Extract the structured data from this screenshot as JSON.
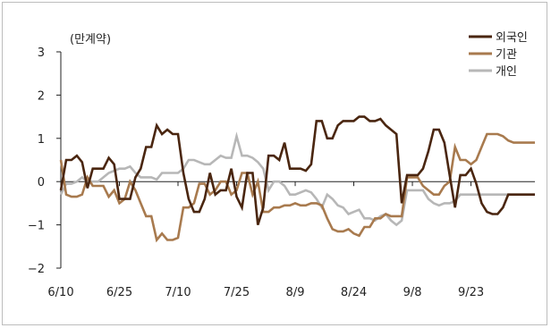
{
  "chart_data": {
    "type": "line",
    "unit_label": "(만계약)",
    "x_tick_labels": [
      "6/10",
      "6/25",
      "7/10",
      "7/25",
      "8/9",
      "8/24",
      "9/8",
      "9/23"
    ],
    "x_tick_index": [
      0,
      11,
      22,
      33,
      44,
      55,
      66,
      77
    ],
    "num_points": 90,
    "ylim": [
      -2,
      3
    ],
    "yticks": [
      3,
      2,
      1,
      0,
      -1,
      -2
    ],
    "ytick_labels": [
      "3",
      "2",
      "1",
      "0",
      "−1",
      "−2"
    ],
    "legend_position": "top-right",
    "series": [
      {
        "name": "외국인",
        "color": "#4a2610",
        "values": [
          -0.2,
          0.5,
          0.5,
          0.6,
          0.45,
          -0.15,
          0.3,
          0.3,
          0.3,
          0.55,
          0.4,
          -0.4,
          -0.4,
          -0.4,
          0.1,
          0.3,
          0.8,
          0.8,
          1.3,
          1.1,
          1.2,
          1.1,
          1.1,
          0.2,
          -0.4,
          -0.7,
          -0.7,
          -0.4,
          0.2,
          -0.3,
          -0.2,
          -0.2,
          0.3,
          -0.35,
          -0.6,
          0.2,
          0.2,
          -1.0,
          -0.6,
          0.6,
          0.6,
          0.5,
          0.9,
          0.3,
          0.3,
          0.3,
          0.25,
          0.4,
          1.4,
          1.4,
          1.0,
          1.0,
          1.3,
          1.4,
          1.4,
          1.4,
          1.5,
          1.5,
          1.4,
          1.4,
          1.45,
          1.3,
          1.2,
          1.1,
          -0.5,
          0.15,
          0.15,
          0.15,
          0.3,
          0.7,
          1.2,
          1.2,
          0.9,
          0.15,
          -0.6,
          0.15,
          0.15,
          0.3,
          -0.05,
          -0.5,
          -0.7,
          -0.75,
          -0.75,
          -0.6,
          -0.3,
          -0.3,
          -0.3,
          -0.3,
          -0.3,
          -0.3
        ]
      },
      {
        "name": "기관",
        "color": "#a87a4e",
        "values": [
          0.5,
          -0.3,
          -0.35,
          -0.35,
          -0.3,
          0.1,
          -0.1,
          -0.1,
          -0.1,
          -0.35,
          -0.2,
          -0.5,
          -0.4,
          0.0,
          -0.2,
          -0.5,
          -0.8,
          -0.8,
          -1.35,
          -1.2,
          -1.35,
          -1.35,
          -1.3,
          -0.6,
          -0.6,
          -0.5,
          -0.05,
          -0.05,
          -0.3,
          -0.2,
          0.0,
          0.0,
          -0.3,
          -0.2,
          0.2,
          0.2,
          -0.3,
          0.0,
          -0.7,
          -0.7,
          -0.6,
          -0.6,
          -0.55,
          -0.55,
          -0.5,
          -0.55,
          -0.55,
          -0.5,
          -0.5,
          -0.55,
          -0.85,
          -1.1,
          -1.15,
          -1.15,
          -1.1,
          -1.2,
          -1.25,
          -1.05,
          -1.05,
          -0.85,
          -0.85,
          -0.75,
          -0.8,
          -0.8,
          -0.8,
          0.1,
          0.1,
          0.1,
          -0.1,
          -0.2,
          -0.3,
          -0.3,
          -0.1,
          0.0,
          0.8,
          0.5,
          0.5,
          0.4,
          0.5,
          0.8,
          1.1,
          1.1,
          1.1,
          1.05,
          0.95,
          0.9,
          0.9,
          0.9,
          0.9,
          0.9
        ]
      },
      {
        "name": "개인",
        "color": "#b7b7b7",
        "values": [
          -0.3,
          -0.05,
          -0.05,
          0.0,
          0.1,
          0.0,
          0.0,
          0.0,
          0.1,
          0.2,
          0.25,
          0.3,
          0.3,
          0.35,
          0.2,
          0.1,
          0.1,
          0.1,
          0.05,
          0.2,
          0.2,
          0.2,
          0.2,
          0.3,
          0.5,
          0.5,
          0.45,
          0.4,
          0.4,
          0.5,
          0.6,
          0.55,
          0.55,
          1.05,
          0.6,
          0.6,
          0.55,
          0.45,
          0.3,
          -0.2,
          0.0,
          0.0,
          -0.1,
          -0.3,
          -0.3,
          -0.25,
          -0.2,
          -0.25,
          -0.4,
          -0.6,
          -0.3,
          -0.4,
          -0.55,
          -0.6,
          -0.75,
          -0.7,
          -0.65,
          -0.85,
          -0.85,
          -0.9,
          -0.8,
          -0.75,
          -0.9,
          -1.0,
          -0.9,
          -0.2,
          -0.2,
          -0.2,
          -0.2,
          -0.4,
          -0.5,
          -0.55,
          -0.5,
          -0.5,
          -0.45,
          -0.3,
          -0.3,
          -0.3,
          -0.3,
          -0.3,
          -0.3,
          -0.3,
          -0.3,
          -0.3,
          -0.3,
          -0.3,
          -0.3,
          -0.3,
          -0.3,
          -0.3
        ]
      }
    ]
  }
}
